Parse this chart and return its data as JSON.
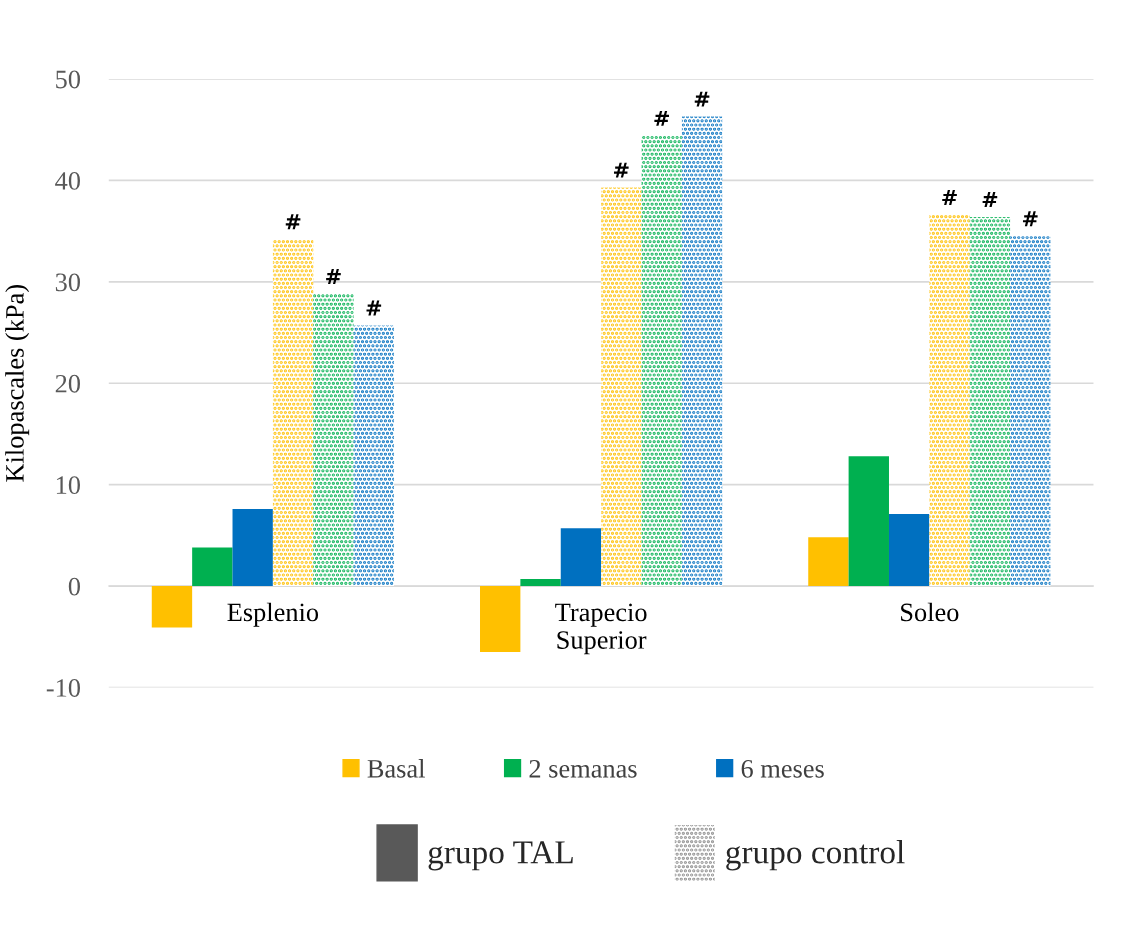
{
  "chart_data": {
    "type": "bar",
    "ylabel": "Kilopascales (kPa)",
    "categories": [
      "Esplenio",
      "Trapecio\nSuperior",
      "Soleo"
    ],
    "series": [
      {
        "name": "Basal",
        "color": "#ffc000",
        "values": [
          -4.1,
          -6.5,
          4.8
        ]
      },
      {
        "name": "2 semanas",
        "color": "#00b050",
        "values": [
          3.8,
          0.7,
          12.8
        ]
      },
      {
        "name": "6 meses",
        "color": "#0070c0",
        "values": [
          7.6,
          5.7,
          7.1
        ]
      },
      {
        "color": "#ffc000",
        "values": [
          34.2,
          39.3,
          36.6
        ]
      },
      {
        "color": "#00b050",
        "values": [
          28.8,
          44.4,
          36.4
        ]
      },
      {
        "color": "#0070c0",
        "values": [
          25.7,
          46.3,
          34.5
        ]
      }
    ],
    "ylim": [
      -10,
      50
    ],
    "yticks": [
      -10,
      0,
      10,
      20,
      30,
      40,
      50
    ],
    "grid": "y",
    "legend": "bottom",
    "annotations": [
      "grupo TAL",
      "grupo control",
      "#",
      "#",
      "#",
      "#",
      "#",
      "#",
      "#",
      "#",
      "#"
    ]
  }
}
